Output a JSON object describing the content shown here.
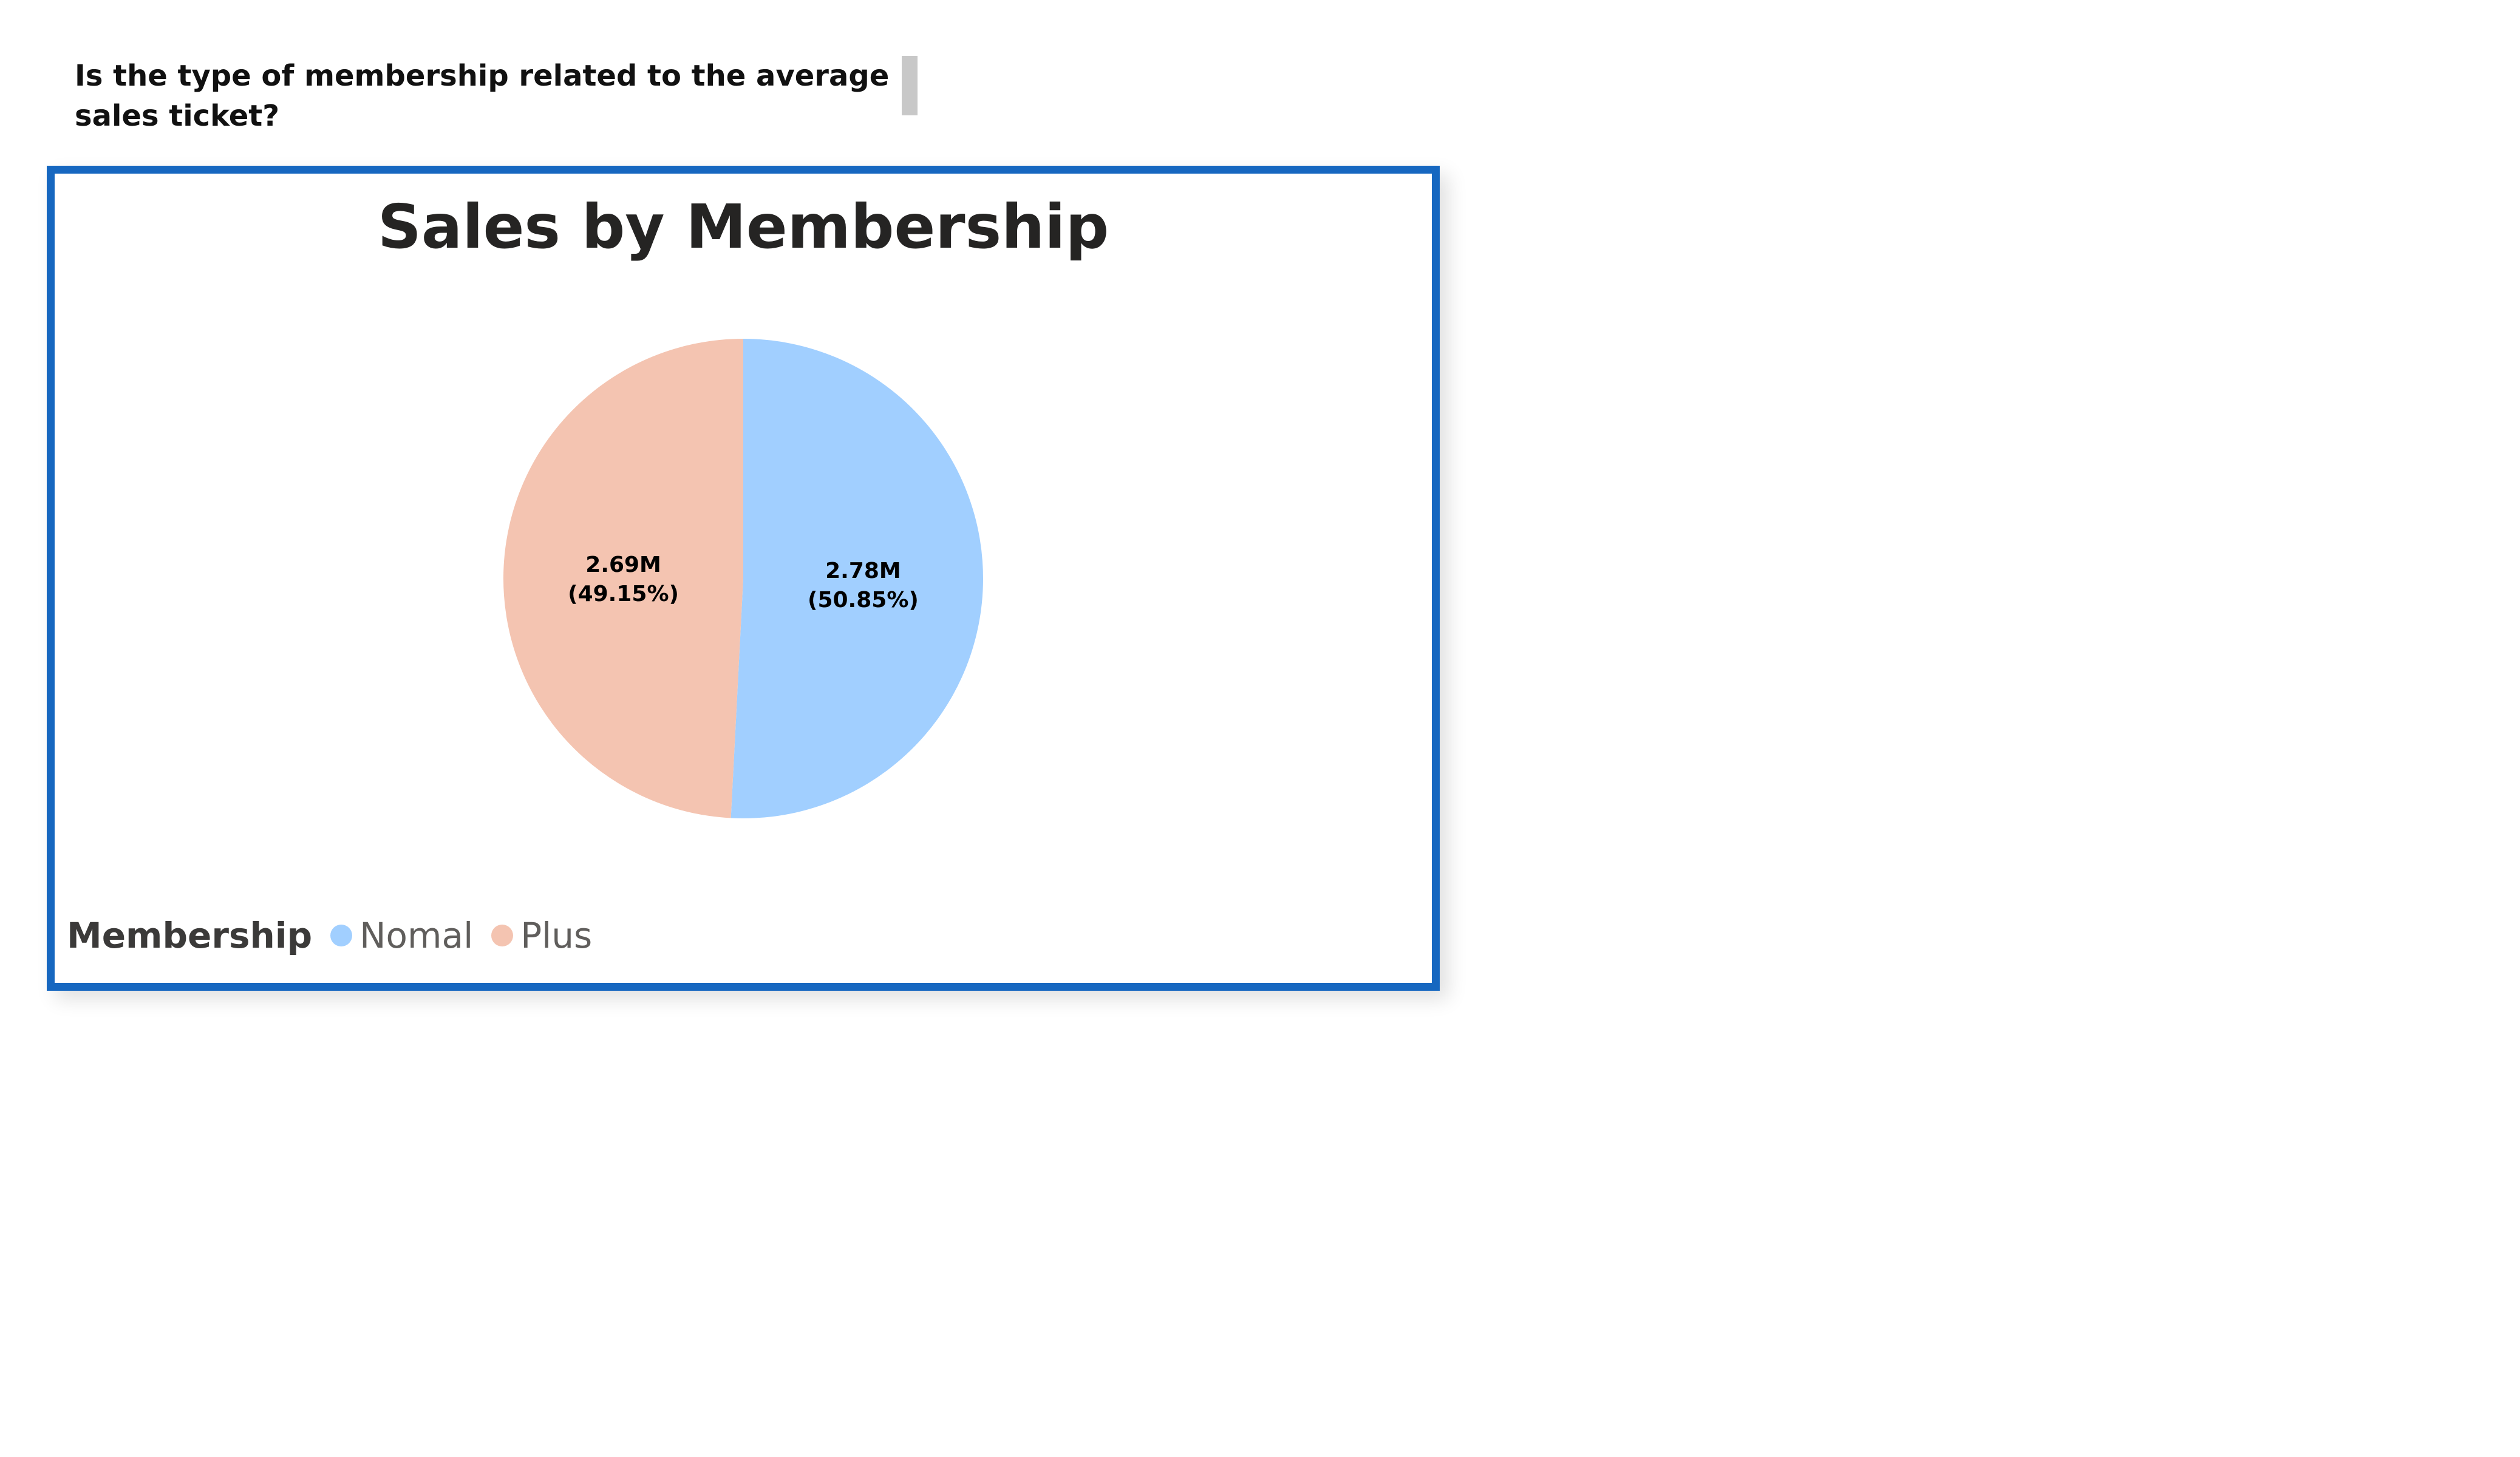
{
  "question": {
    "text": "Is the type of membership related to the average sales ticket?"
  },
  "chart_data": {
    "type": "pie",
    "title": "Sales by Membership",
    "legend_title": "Membership",
    "legend_placement": "bottom-left",
    "categories": [
      "Nomal",
      "Plus"
    ],
    "values": [
      2.78,
      2.69
    ],
    "value_unit": "M",
    "value_labels": [
      "2.78M",
      "2.69M"
    ],
    "percent_labels": [
      "(50.85%)",
      "(49.15%)"
    ],
    "percentages": [
      50.85,
      49.15
    ],
    "colors": [
      "#a1cfff",
      "#f4c4b1"
    ]
  }
}
